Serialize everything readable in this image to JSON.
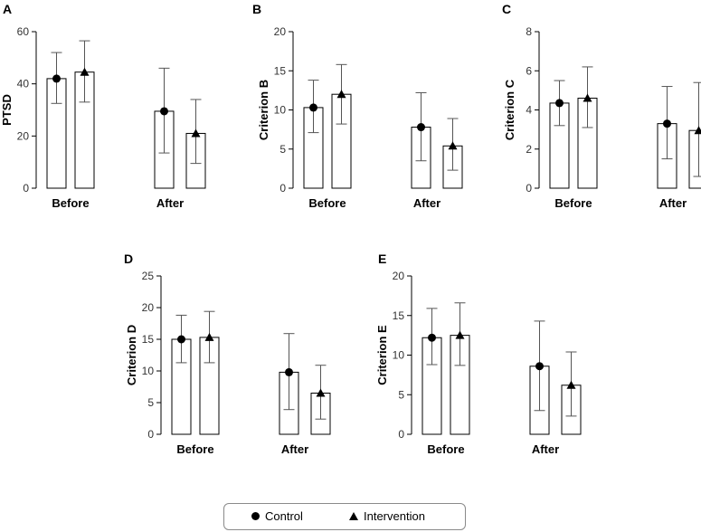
{
  "chart_data": [
    {
      "panel": "A",
      "type": "bar",
      "categories": [
        "Before",
        "After"
      ],
      "series": [
        {
          "name": "Control",
          "marker": "circle",
          "values": [
            42,
            29.5
          ],
          "err_low": [
            32.5,
            13.5
          ],
          "err_high": [
            52,
            46
          ]
        },
        {
          "name": "Intervention",
          "marker": "triangle",
          "values": [
            44.5,
            21
          ],
          "err_low": [
            33,
            9.5
          ],
          "err_high": [
            56.5,
            34
          ]
        }
      ],
      "ylabel": "PTSD",
      "ylim": [
        0,
        60
      ],
      "yticks": [
        0,
        20,
        40,
        60
      ]
    },
    {
      "panel": "B",
      "type": "bar",
      "categories": [
        "Before",
        "After"
      ],
      "series": [
        {
          "name": "Control",
          "marker": "circle",
          "values": [
            10.3,
            7.8
          ],
          "err_low": [
            7.1,
            3.5
          ],
          "err_high": [
            13.8,
            12.2
          ]
        },
        {
          "name": "Intervention",
          "marker": "triangle",
          "values": [
            12,
            5.4
          ],
          "err_low": [
            8.2,
            2.3
          ],
          "err_high": [
            15.8,
            8.9
          ]
        }
      ],
      "ylabel": "Criterion B",
      "ylim": [
        0,
        20
      ],
      "yticks": [
        0,
        5,
        10,
        15,
        20
      ]
    },
    {
      "panel": "C",
      "type": "bar",
      "categories": [
        "Before",
        "After"
      ],
      "series": [
        {
          "name": "Control",
          "marker": "circle",
          "values": [
            4.35,
            3.3
          ],
          "err_low": [
            3.2,
            1.5
          ],
          "err_high": [
            5.5,
            5.2
          ]
        },
        {
          "name": "Intervention",
          "marker": "triangle",
          "values": [
            4.6,
            2.95
          ],
          "err_low": [
            3.1,
            0.6
          ],
          "err_high": [
            6.2,
            5.4
          ]
        }
      ],
      "ylabel": "Criterion C",
      "ylim": [
        0,
        8
      ],
      "yticks": [
        0,
        2,
        4,
        6,
        8
      ]
    },
    {
      "panel": "D",
      "type": "bar",
      "categories": [
        "Before",
        "After"
      ],
      "series": [
        {
          "name": "Control",
          "marker": "circle",
          "values": [
            15,
            9.8
          ],
          "err_low": [
            11.3,
            3.9
          ],
          "err_high": [
            18.8,
            15.9
          ]
        },
        {
          "name": "Intervention",
          "marker": "triangle",
          "values": [
            15.3,
            6.5
          ],
          "err_low": [
            11.3,
            2.4
          ],
          "err_high": [
            19.4,
            10.9
          ]
        }
      ],
      "ylabel": "Criterion D",
      "ylim": [
        0,
        25
      ],
      "yticks": [
        0,
        5,
        10,
        15,
        20,
        25
      ]
    },
    {
      "panel": "E",
      "type": "bar",
      "categories": [
        "Before",
        "After"
      ],
      "series": [
        {
          "name": "Control",
          "marker": "circle",
          "values": [
            12.2,
            8.6
          ],
          "err_low": [
            8.8,
            3
          ],
          "err_high": [
            15.9,
            14.3
          ]
        },
        {
          "name": "Intervention",
          "marker": "triangle",
          "values": [
            12.5,
            6.2
          ],
          "err_low": [
            8.7,
            2.3
          ],
          "err_high": [
            16.6,
            10.4
          ]
        }
      ],
      "ylabel": "Criterion E",
      "ylim": [
        0,
        20
      ],
      "yticks": [
        0,
        5,
        10,
        15,
        20
      ]
    }
  ],
  "legend": {
    "items": [
      {
        "label": "Control",
        "marker": "circle"
      },
      {
        "label": "Intervention",
        "marker": "triangle"
      }
    ]
  }
}
